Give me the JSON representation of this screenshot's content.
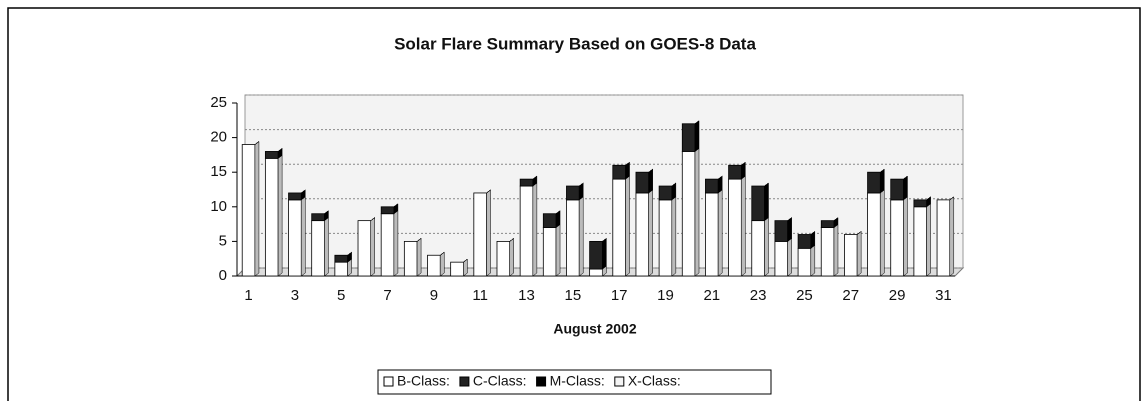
{
  "chart_data": {
    "type": "bar",
    "stacked": true,
    "title": "Solar Flare Summary Based on GOES-8 Data",
    "x_label": "August 2002",
    "categories": [
      1,
      null,
      3,
      null,
      5,
      null,
      7,
      null,
      9,
      null,
      11,
      null,
      13,
      null,
      15,
      null,
      17,
      null,
      19,
      null,
      21,
      null,
      23,
      null,
      25,
      null,
      27,
      null,
      29,
      null,
      31
    ],
    "series": [
      {
        "name": "B-Class:",
        "color": "#ffffff",
        "values": [
          19,
          17,
          11,
          8,
          2,
          8,
          9,
          5,
          3,
          2,
          12,
          5,
          13,
          7,
          11,
          1,
          14,
          12,
          11,
          18,
          12,
          14,
          8,
          5,
          4,
          7,
          6,
          12,
          11,
          10,
          11
        ]
      },
      {
        "name": "C-Class:",
        "color": "#222222",
        "values": [
          0,
          1,
          1,
          1,
          1,
          0,
          1,
          0,
          0,
          0,
          0,
          0,
          1,
          2,
          2,
          4,
          2,
          3,
          2,
          4,
          2,
          2,
          5,
          3,
          2,
          1,
          0,
          3,
          3,
          1,
          0
        ]
      },
      {
        "name": "M-Class:",
        "color": "#000000",
        "values": [
          0,
          0,
          0,
          0,
          0,
          0,
          0,
          0,
          0,
          0,
          0,
          0,
          0,
          0,
          0,
          0,
          0,
          0,
          0,
          0,
          0,
          0,
          0,
          0,
          0,
          0,
          0,
          0,
          0,
          0,
          0
        ]
      },
      {
        "name": "X-Class:",
        "color": "#f4f4f4",
        "values": [
          0,
          0,
          0,
          0,
          0,
          0,
          0,
          0,
          0,
          0,
          0,
          0,
          0,
          0,
          0,
          0,
          0,
          0,
          0,
          0,
          0,
          0,
          0,
          0,
          0,
          0,
          0,
          0,
          0,
          0,
          0
        ]
      }
    ],
    "ylim": [
      0,
      25
    ],
    "yticks": [
      0,
      5,
      10,
      15,
      20,
      25
    ],
    "grid": true
  }
}
